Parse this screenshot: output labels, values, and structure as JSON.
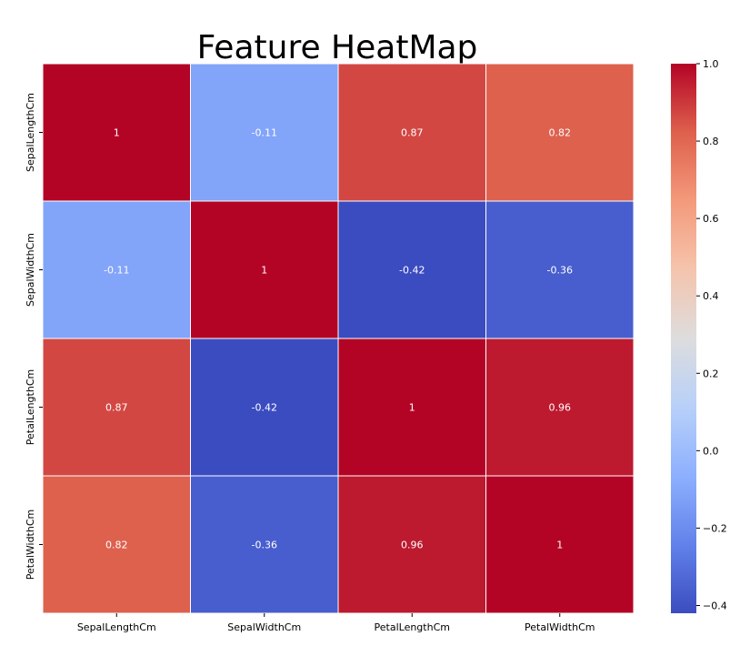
{
  "chart_data": {
    "type": "heatmap",
    "title": "Feature HeatMap",
    "xlabel": "",
    "ylabel": "",
    "x_categories": [
      "SepalLengthCm",
      "SepalWidthCm",
      "PetalLengthCm",
      "PetalWidthCm"
    ],
    "y_categories": [
      "SepalLengthCm",
      "SepalWidthCm",
      "PetalLengthCm",
      "PetalWidthCm"
    ],
    "values": [
      [
        1,
        -0.11,
        0.87,
        0.82
      ],
      [
        -0.11,
        1,
        -0.42,
        -0.36
      ],
      [
        0.87,
        -0.42,
        1,
        0.96
      ],
      [
        0.82,
        -0.36,
        0.96,
        1
      ]
    ],
    "cell_labels": [
      [
        "1",
        "-0.11",
        "0.87",
        "0.82"
      ],
      [
        "-0.11",
        "1",
        "-0.42",
        "-0.36"
      ],
      [
        "0.87",
        "-0.42",
        "1",
        "0.96"
      ],
      [
        "0.82",
        "-0.36",
        "0.96",
        "1"
      ]
    ],
    "colormap": "coolwarm",
    "colorbar": {
      "range": [
        -0.42,
        1.0
      ],
      "ticks": [
        1.0,
        0.8,
        0.6,
        0.4,
        0.2,
        0.0,
        -0.2,
        -0.4
      ],
      "tick_labels": [
        "1.0",
        "0.8",
        "0.6",
        "0.4",
        "0.2",
        "0.0",
        "−0.2",
        "−0.4"
      ]
    },
    "grid_line_color": "#ffffff",
    "cell_text_color": "#ffffff",
    "axis_text_color": "#000000"
  }
}
